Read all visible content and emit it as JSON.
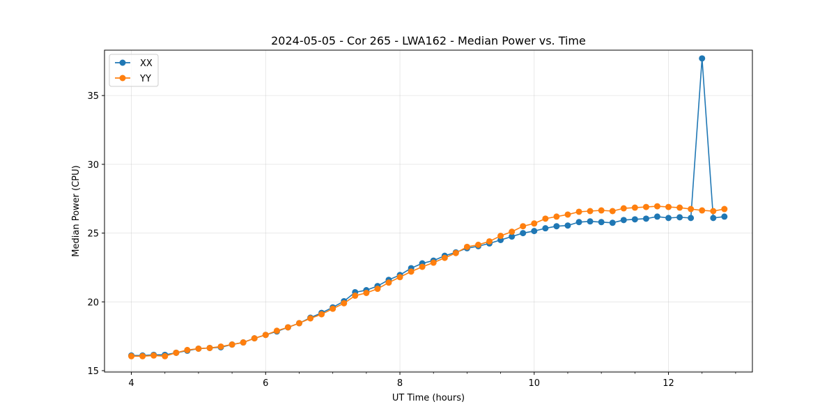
{
  "chart_data": {
    "type": "line",
    "title": "2024-05-05 - Cor 265 - LWA162 - Median Power vs. Time",
    "xlabel": "UT Time (hours)",
    "ylabel": "Median Power (CPU)",
    "xlim": [
      3.6,
      13.25
    ],
    "ylim": [
      14.9,
      38.3
    ],
    "xticks": [
      4,
      6,
      8,
      10,
      12
    ],
    "xtick_labels": [
      "4",
      "6",
      "8",
      "10",
      "12"
    ],
    "yticks": [
      15,
      20,
      25,
      30,
      35
    ],
    "ytick_labels": [
      "15",
      "20",
      "25",
      "30",
      "35"
    ],
    "grid": true,
    "legend": "top-left",
    "x": [
      4.0,
      4.167,
      4.333,
      4.5,
      4.667,
      4.833,
      5.0,
      5.167,
      5.333,
      5.5,
      5.667,
      5.833,
      6.0,
      6.167,
      6.333,
      6.5,
      6.667,
      6.833,
      7.0,
      7.167,
      7.333,
      7.5,
      7.667,
      7.833,
      8.0,
      8.167,
      8.333,
      8.5,
      8.667,
      8.833,
      9.0,
      9.167,
      9.333,
      9.5,
      9.667,
      9.833,
      10.0,
      10.167,
      10.333,
      10.5,
      10.667,
      10.833,
      11.0,
      11.167,
      11.333,
      11.5,
      11.667,
      11.833,
      12.0,
      12.167,
      12.333,
      12.5,
      12.667,
      12.833
    ],
    "series": [
      {
        "name": "XX",
        "color": "#1f77b4",
        "values": [
          16.1,
          16.1,
          16.15,
          16.15,
          16.3,
          16.45,
          16.6,
          16.65,
          16.7,
          16.9,
          17.05,
          17.35,
          17.6,
          17.85,
          18.15,
          18.45,
          18.85,
          19.2,
          19.6,
          20.05,
          20.7,
          20.85,
          21.15,
          21.6,
          21.95,
          22.45,
          22.8,
          23.0,
          23.35,
          23.6,
          23.9,
          24.05,
          24.25,
          24.5,
          24.75,
          25.0,
          25.15,
          25.35,
          25.5,
          25.55,
          25.8,
          25.85,
          25.8,
          25.75,
          25.95,
          26.0,
          26.05,
          26.2,
          26.1,
          26.15,
          26.1,
          37.7,
          26.1,
          26.2
        ]
      },
      {
        "name": "YY",
        "color": "#ff7f0e",
        "values": [
          16.05,
          16.05,
          16.1,
          16.05,
          16.3,
          16.5,
          16.6,
          16.65,
          16.75,
          16.9,
          17.05,
          17.35,
          17.6,
          17.9,
          18.15,
          18.45,
          18.8,
          19.1,
          19.5,
          19.9,
          20.45,
          20.65,
          20.95,
          21.4,
          21.8,
          22.2,
          22.55,
          22.85,
          23.2,
          23.55,
          24.0,
          24.15,
          24.4,
          24.8,
          25.1,
          25.5,
          25.7,
          26.05,
          26.2,
          26.35,
          26.55,
          26.6,
          26.65,
          26.6,
          26.8,
          26.85,
          26.9,
          26.95,
          26.9,
          26.85,
          26.75,
          26.65,
          26.6,
          26.75
        ]
      }
    ]
  }
}
